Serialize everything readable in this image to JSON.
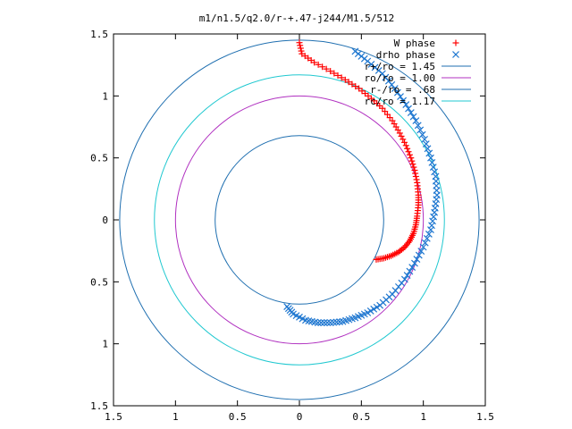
{
  "chart_data": {
    "type": "scatter",
    "title": "m1/n1.5/q2.0/r-+.47-j244/M1.5/512",
    "xlim": [
      -1.5,
      1.5
    ],
    "ylim": [
      -1.5,
      1.5
    ],
    "xticks": [
      -1.5,
      -1,
      -0.5,
      0,
      0.5,
      1,
      1.5
    ],
    "yticks": [
      -1.5,
      -1,
      -0.5,
      0,
      0.5,
      1,
      1.5
    ],
    "xtick_labels": [
      "1.5",
      "1",
      "0.5",
      "0",
      "0.5",
      "1",
      "1.5"
    ],
    "ytick_labels": [
      "1.5",
      "1",
      "0.5",
      "0",
      "0.5",
      "1",
      "1.5"
    ],
    "grid": false,
    "legend_position": "top-right",
    "series": [
      {
        "name": "W phase",
        "marker": "plus",
        "color": "#ff0000",
        "points": [
          [
            0.62,
            -0.32
          ],
          [
            0.68,
            -0.31
          ],
          [
            0.74,
            -0.29
          ],
          [
            0.8,
            -0.26
          ],
          [
            0.85,
            -0.22
          ],
          [
            0.89,
            -0.17
          ],
          [
            0.92,
            -0.11
          ],
          [
            0.94,
            -0.04
          ],
          [
            0.95,
            0.03
          ],
          [
            0.96,
            0.12
          ],
          [
            0.96,
            0.2
          ],
          [
            0.95,
            0.3
          ],
          [
            0.93,
            0.4
          ],
          [
            0.9,
            0.5
          ],
          [
            0.86,
            0.6
          ],
          [
            0.81,
            0.7
          ],
          [
            0.75,
            0.8
          ],
          [
            0.67,
            0.9
          ],
          [
            0.58,
            0.98
          ],
          [
            0.48,
            1.06
          ],
          [
            0.37,
            1.13
          ],
          [
            0.25,
            1.2
          ],
          [
            0.12,
            1.27
          ],
          [
            0.02,
            1.34
          ],
          [
            0.0,
            1.43
          ]
        ]
      },
      {
        "name": "drho phase",
        "marker": "cross",
        "color": "#1f77d0",
        "points": [
          [
            -0.1,
            -0.7
          ],
          [
            -0.05,
            -0.76
          ],
          [
            0.05,
            -0.81
          ],
          [
            0.15,
            -0.83
          ],
          [
            0.25,
            -0.83
          ],
          [
            0.35,
            -0.82
          ],
          [
            0.45,
            -0.79
          ],
          [
            0.55,
            -0.75
          ],
          [
            0.65,
            -0.69
          ],
          [
            0.75,
            -0.6
          ],
          [
            0.85,
            -0.48
          ],
          [
            0.93,
            -0.35
          ],
          [
            1.0,
            -0.22
          ],
          [
            1.06,
            -0.08
          ],
          [
            1.09,
            0.06
          ],
          [
            1.11,
            0.2
          ],
          [
            1.1,
            0.35
          ],
          [
            1.06,
            0.5
          ],
          [
            1.01,
            0.65
          ],
          [
            0.94,
            0.8
          ],
          [
            0.86,
            0.93
          ],
          [
            0.77,
            1.06
          ],
          [
            0.67,
            1.18
          ],
          [
            0.55,
            1.28
          ],
          [
            0.45,
            1.36
          ]
        ]
      }
    ],
    "circles": [
      {
        "name": "r+/ro = 1.45",
        "r": 1.45,
        "color": "#1f6fb0"
      },
      {
        "name": "ro/ro = 1.00",
        "r": 1.0,
        "color": "#b030c0"
      },
      {
        "name": "r-/ro = .68",
        "r": 0.68,
        "color": "#1f6fb0"
      },
      {
        "name": "rc/ro = 1.17",
        "r": 1.17,
        "color": "#20c8d0"
      }
    ]
  }
}
